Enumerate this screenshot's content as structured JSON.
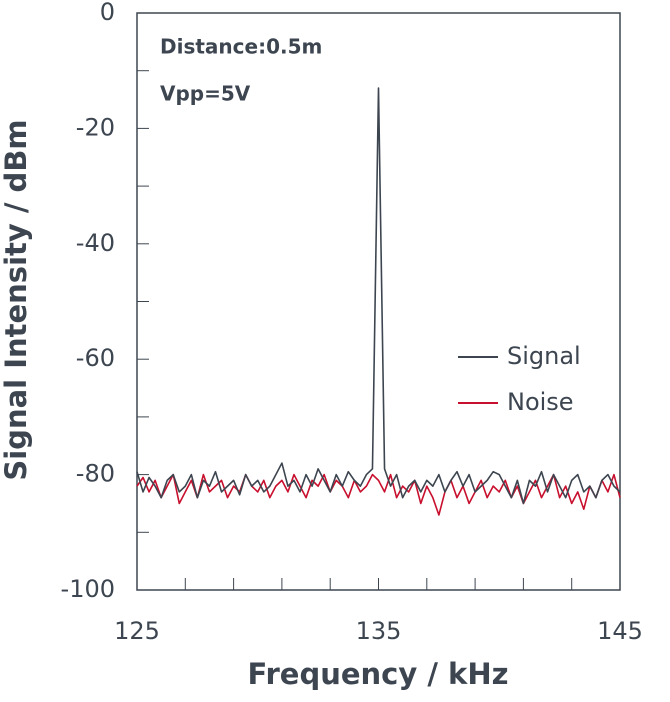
{
  "chart_data": {
    "type": "line",
    "x_label": "Frequency / kHz",
    "y_label": "Signal Intensity / dBm",
    "annotations": [
      "Distance:0.5m",
      "Vpp=5V"
    ],
    "xlim": [
      125,
      145
    ],
    "xticks": [
      125,
      135,
      145
    ],
    "minor_xticks": [
      127,
      129,
      131,
      133,
      137,
      139,
      141,
      143
    ],
    "ylim": [
      -100,
      0
    ],
    "yticks": [
      0,
      -20,
      -40,
      -60,
      -80,
      -100
    ],
    "minor_yticks": [
      -10,
      -30,
      -50,
      -70,
      -90
    ],
    "grid": false,
    "legend": "right",
    "x": [
      125,
      125.25,
      125.5,
      125.75,
      126,
      126.25,
      126.5,
      126.75,
      127,
      127.25,
      127.5,
      127.75,
      128,
      128.25,
      128.5,
      128.75,
      129,
      129.25,
      129.5,
      129.75,
      130,
      130.25,
      130.5,
      130.75,
      131,
      131.25,
      131.5,
      131.75,
      132,
      132.25,
      132.5,
      132.75,
      133,
      133.25,
      133.5,
      133.75,
      134,
      134.25,
      134.5,
      134.75,
      135,
      135.25,
      135.5,
      135.75,
      136,
      136.25,
      136.5,
      136.75,
      137,
      137.25,
      137.5,
      137.75,
      138,
      138.25,
      138.5,
      138.75,
      139,
      139.25,
      139.5,
      139.75,
      140,
      140.25,
      140.5,
      140.75,
      141,
      141.25,
      141.5,
      141.75,
      142,
      142.25,
      142.5,
      142.75,
      143,
      143.25,
      143.5,
      143.75,
      144,
      144.25,
      144.5,
      144.75,
      145
    ],
    "series": [
      {
        "name": "Signal",
        "color": "#3d4650",
        "values": [
          -79.5,
          -83,
          -80.5,
          -82,
          -84,
          -81,
          -80,
          -83,
          -82,
          -80,
          -84,
          -81,
          -82,
          -79.5,
          -83,
          -82,
          -81,
          -83.5,
          -80,
          -82,
          -81,
          -83,
          -82,
          -80,
          -78,
          -82,
          -81,
          -83,
          -80,
          -82,
          -79,
          -81,
          -83,
          -80,
          -82,
          -79.5,
          -81,
          -82,
          -80,
          -79,
          -13,
          -79,
          -82,
          -80,
          -84,
          -82,
          -81,
          -83,
          -81,
          -82,
          -80,
          -83,
          -81,
          -79.5,
          -82,
          -80,
          -83,
          -82,
          -81,
          -79.5,
          -80,
          -82,
          -84,
          -81,
          -85,
          -81,
          -82,
          -79.5,
          -83,
          -80,
          -82,
          -84,
          -81,
          -80,
          -83,
          -82,
          -84,
          -81,
          -80,
          -82,
          -83
        ]
      },
      {
        "name": "Noise",
        "color": "#c8102e",
        "values": [
          -82,
          -80.5,
          -83,
          -81,
          -84,
          -82,
          -80,
          -85,
          -83,
          -81,
          -84,
          -80,
          -83,
          -82,
          -81,
          -84,
          -82,
          -83,
          -80,
          -82,
          -83,
          -81,
          -84,
          -82,
          -81,
          -83,
          -80,
          -82,
          -84,
          -81,
          -82,
          -80,
          -83,
          -81,
          -82,
          -84,
          -81,
          -83,
          -82,
          -80,
          -81,
          -83,
          -80,
          -84,
          -82,
          -83,
          -81,
          -85,
          -82,
          -84,
          -87,
          -83,
          -81,
          -84,
          -82,
          -85,
          -83,
          -81,
          -84,
          -82,
          -83,
          -81,
          -84,
          -82,
          -85,
          -83,
          -81,
          -84,
          -82,
          -80,
          -84,
          -82,
          -85,
          -83,
          -86,
          -82,
          -84,
          -81,
          -83,
          -80,
          -84
        ]
      }
    ]
  }
}
